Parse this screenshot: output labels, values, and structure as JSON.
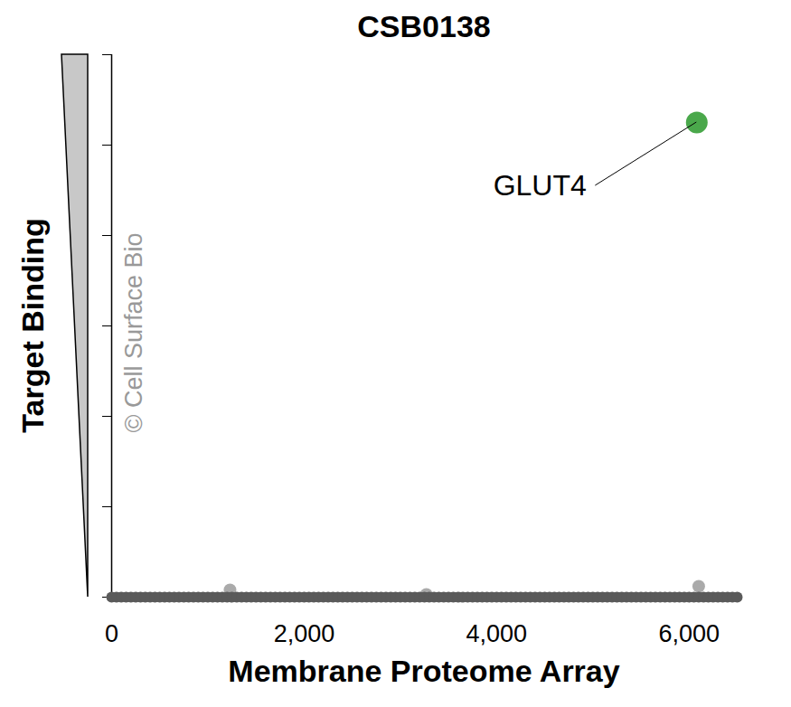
{
  "chart_data": {
    "type": "scatter",
    "title": "CSB0138",
    "x_label": "Membrane Proteome Array",
    "y_label": "Target Binding",
    "watermark": "© Cell Surface Bio",
    "xlim": [
      0,
      6500
    ],
    "xticks": [
      0,
      {
        "value": 2000,
        "label": "2,000"
      },
      {
        "value": 4000,
        "label": "4,000"
      },
      {
        "value": 6000,
        "label": "6,000"
      }
    ],
    "ylim": [
      0,
      6
    ],
    "yticks": [
      0,
      1,
      2,
      3,
      4,
      5,
      6
    ],
    "tick_labels": "x",
    "grid": false,
    "series": [
      {
        "color": "#aaaaaa",
        "x": [
          1230,
          3270,
          6100
        ],
        "values": [
          0.08,
          0.03,
          0.12
        ]
      },
      {
        "color": "#5a5a5a",
        "x": [
          0,
          50,
          100,
          150,
          200,
          250,
          300,
          350,
          400,
          450,
          500,
          550,
          600,
          650,
          700,
          750,
          800,
          850,
          900,
          950,
          1000,
          1050,
          1100,
          1150,
          1200,
          1250,
          1300,
          1350,
          1400,
          1450,
          1500,
          1550,
          1600,
          1650,
          1700,
          1750,
          1800,
          1850,
          1900,
          1950,
          2000,
          2050,
          2100,
          2150,
          2200,
          2250,
          2300,
          2350,
          2400,
          2450,
          2500,
          2550,
          2600,
          2650,
          2700,
          2750,
          2800,
          2850,
          2900,
          2950,
          3000,
          3050,
          3100,
          3150,
          3200,
          3250,
          3300,
          3350,
          3400,
          3450,
          3500,
          3550,
          3600,
          3650,
          3700,
          3750,
          3800,
          3850,
          3900,
          3950,
          4000,
          4050,
          4100,
          4150,
          4200,
          4250,
          4300,
          4350,
          4400,
          4450,
          4500,
          4550,
          4600,
          4650,
          4700,
          4750,
          4800,
          4850,
          4900,
          4950,
          5000,
          5050,
          5100,
          5150,
          5200,
          5250,
          5300,
          5350,
          5400,
          5450,
          5500,
          5550,
          5600,
          5650,
          5700,
          5750,
          5800,
          5850,
          5900,
          5950,
          6000,
          6050,
          6100,
          6150,
          6200,
          6250,
          6300,
          6350,
          6400,
          6450,
          6500
        ],
        "values": [
          0,
          0,
          0,
          0,
          0,
          0,
          0,
          0,
          0,
          0,
          0,
          0,
          0,
          0,
          0,
          0,
          0,
          0,
          0,
          0,
          0,
          0,
          0,
          0,
          0,
          0,
          0,
          0,
          0,
          0,
          0,
          0,
          0,
          0,
          0,
          0,
          0,
          0,
          0,
          0,
          0,
          0,
          0,
          0,
          0,
          0,
          0,
          0,
          0,
          0,
          0,
          0,
          0,
          0,
          0,
          0,
          0,
          0,
          0,
          0,
          0,
          0,
          0,
          0,
          0,
          0,
          0,
          0,
          0,
          0,
          0,
          0,
          0,
          0,
          0,
          0,
          0,
          0,
          0,
          0,
          0,
          0,
          0,
          0,
          0,
          0,
          0,
          0,
          0,
          0,
          0,
          0,
          0,
          0,
          0,
          0,
          0,
          0,
          0,
          0,
          0,
          0,
          0,
          0,
          0,
          0,
          0,
          0,
          0,
          0,
          0,
          0,
          0,
          0,
          0,
          0,
          0,
          0,
          0,
          0,
          0,
          0,
          0,
          0,
          0,
          0,
          0,
          0,
          0,
          0,
          0
        ]
      },
      {
        "name": "GLUT4",
        "color": "#4aa84b",
        "x": [
          6080
        ],
        "values": [
          5.25
        ]
      }
    ]
  }
}
